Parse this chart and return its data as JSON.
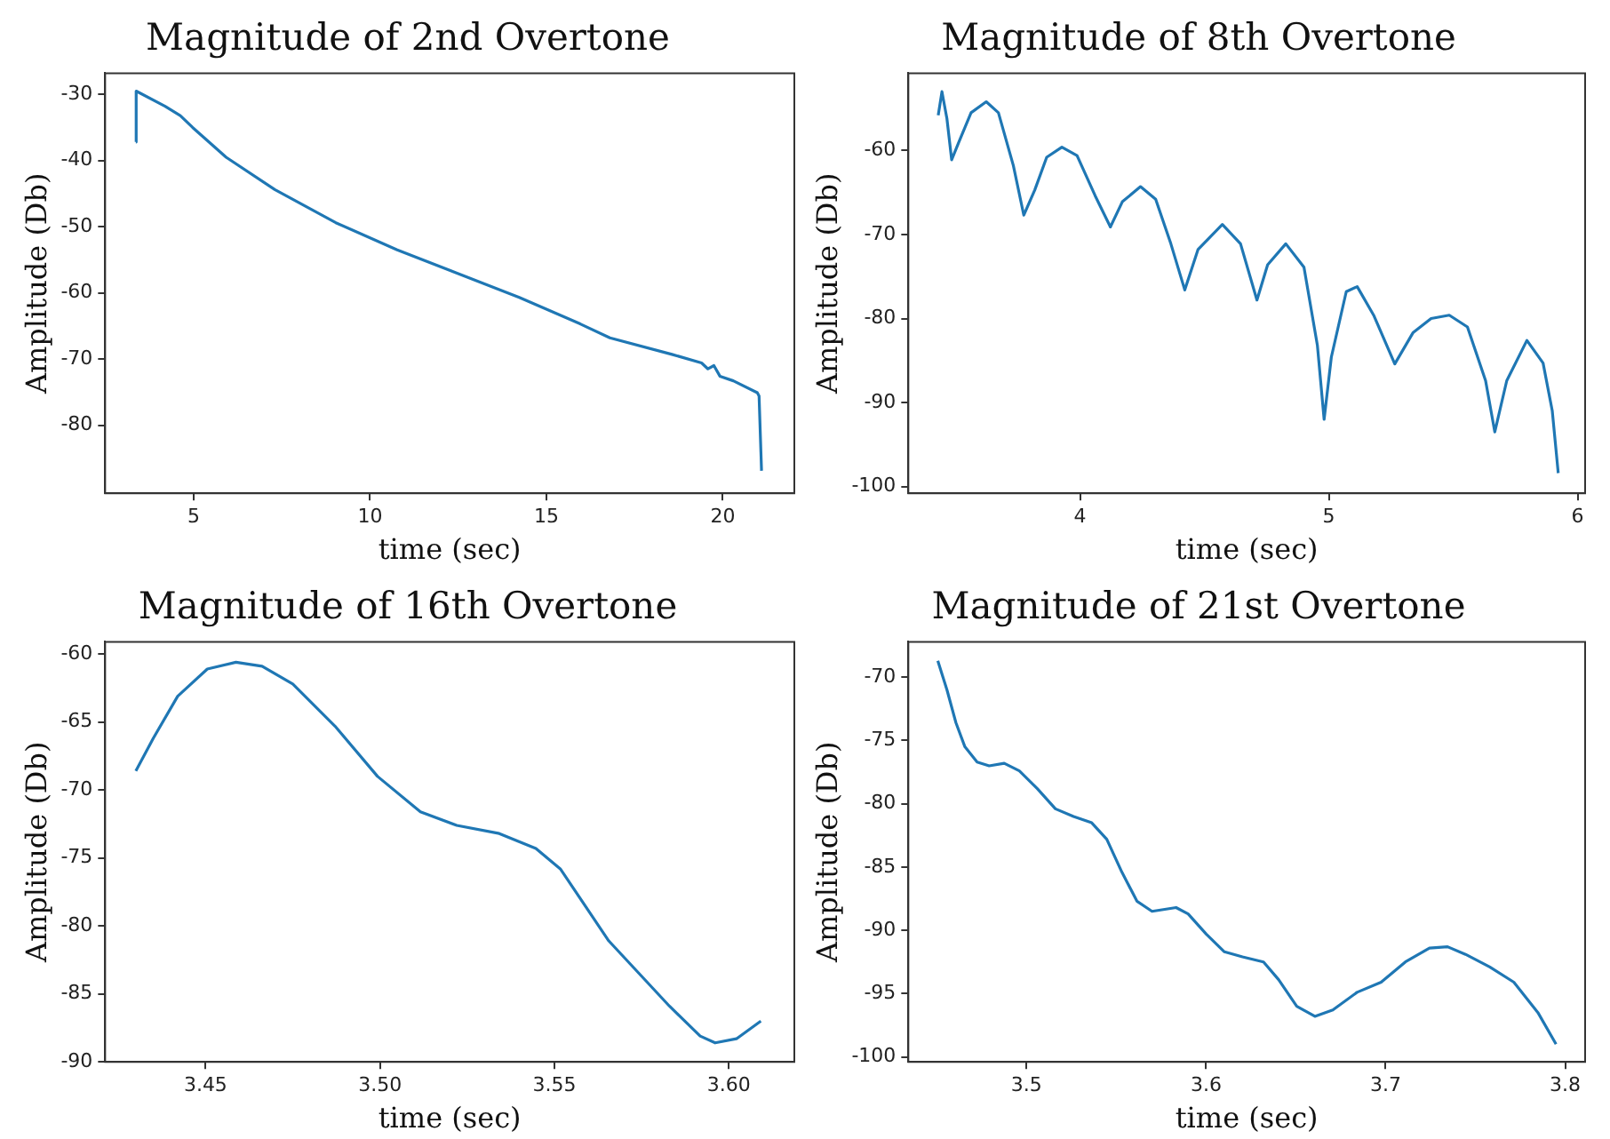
{
  "chart_data": [
    {
      "type": "line",
      "title": "Magnitude of 2nd Overtone",
      "xlabel": "time (sec)",
      "ylabel": "Amplitude (Db)",
      "color": "#1f77b4",
      "xlim": [
        2.49,
        22.03
      ],
      "ylim": [
        -90.3,
        -26.8
      ],
      "xticks": [
        5,
        10,
        15,
        20
      ],
      "yticks": [
        -30,
        -40,
        -50,
        -60,
        -70,
        -80
      ],
      "x": [
        3.36,
        3.37,
        4.19,
        4.62,
        4.97,
        5.92,
        7.3,
        9.03,
        10.77,
        12.5,
        14.23,
        15.96,
        16.8,
        18.56,
        19.4,
        19.58,
        19.75,
        19.92,
        20.3,
        20.98,
        21.03,
        21.1
      ],
      "values": [
        -37.2,
        -29.5,
        -31.8,
        -33.2,
        -35.0,
        -39.5,
        -44.4,
        -49.4,
        -53.5,
        -57.1,
        -60.7,
        -64.7,
        -66.8,
        -69.3,
        -70.6,
        -71.5,
        -71.0,
        -72.6,
        -73.3,
        -75.1,
        -75.6,
        -86.9
      ]
    },
    {
      "type": "line",
      "title": "Magnitude of 8th Overtone",
      "xlabel": "time (sec)",
      "ylabel": "Amplitude (Db)",
      "color": "#1f77b4",
      "xlim": [
        3.31,
        6.03
      ],
      "ylim": [
        -100.8,
        -50.8
      ],
      "xticks": [
        4,
        5,
        6
      ],
      "yticks": [
        -60,
        -70,
        -80,
        -90,
        -100
      ],
      "x": [
        3.43,
        3.445,
        3.465,
        3.484,
        3.513,
        3.562,
        3.623,
        3.672,
        3.732,
        3.774,
        3.818,
        3.866,
        3.927,
        3.988,
        4.061,
        4.122,
        4.17,
        4.243,
        4.304,
        4.365,
        4.421,
        4.474,
        4.572,
        4.645,
        4.711,
        4.754,
        4.827,
        4.9,
        4.954,
        4.981,
        5.01,
        5.07,
        5.114,
        5.18,
        5.265,
        5.338,
        5.411,
        5.484,
        5.557,
        5.63,
        5.667,
        5.715,
        5.796,
        5.861,
        5.898,
        5.922
      ],
      "values": [
        -55.8,
        -53.0,
        -56.2,
        -61.1,
        -59.0,
        -55.5,
        -54.2,
        -55.5,
        -61.8,
        -67.7,
        -64.7,
        -60.8,
        -59.6,
        -60.6,
        -65.4,
        -69.1,
        -66.1,
        -64.3,
        -65.8,
        -71.1,
        -76.6,
        -71.8,
        -68.8,
        -71.1,
        -77.8,
        -73.6,
        -71.1,
        -73.9,
        -83.2,
        -92.0,
        -84.6,
        -76.8,
        -76.2,
        -79.6,
        -85.4,
        -81.7,
        -80.0,
        -79.6,
        -81.0,
        -87.4,
        -93.5,
        -87.4,
        -82.6,
        -85.3,
        -91.0,
        -98.4
      ]
    },
    {
      "type": "line",
      "title": "Magnitude of 16th Overtone",
      "xlabel": "time (sec)",
      "ylabel": "Amplitude (Db)",
      "color": "#1f77b4",
      "xlim": [
        3.4212,
        3.6188
      ],
      "ylim": [
        -90,
        -59.1
      ],
      "xticks": [
        3.45,
        {
          "value": 3.5,
          "label": "3.50"
        },
        3.55,
        {
          "value": 3.6,
          "label": "3.60"
        }
      ],
      "yticks": [
        -60,
        -65,
        -70,
        -75,
        -80,
        -85,
        -90
      ],
      "x": [
        3.43,
        3.435,
        3.442,
        3.4505,
        3.4587,
        3.4662,
        3.475,
        3.4871,
        3.4993,
        3.5116,
        3.522,
        3.5342,
        3.5447,
        3.5517,
        3.5656,
        3.5743,
        3.583,
        3.5918,
        3.5961,
        3.6022,
        3.6092
      ],
      "values": [
        -68.6,
        -66.2,
        -63.1,
        -61.1,
        -60.6,
        -60.9,
        -62.2,
        -65.3,
        -69.0,
        -71.6,
        -72.6,
        -73.2,
        -74.3,
        -75.8,
        -81.1,
        -83.5,
        -85.9,
        -88.1,
        -88.6,
        -88.3,
        -87.0
      ]
    },
    {
      "type": "line",
      "title": "Magnitude of 21st Overtone",
      "xlabel": "time (sec)",
      "ylabel": "Amplitude (Db)",
      "color": "#1f77b4",
      "xlim": [
        3.4342,
        3.8111
      ],
      "ylim": [
        -100.4,
        -67.2
      ],
      "xticks": [
        3.5,
        3.6,
        3.7,
        3.8
      ],
      "yticks": [
        -70,
        -75,
        -80,
        -85,
        -90,
        -95,
        -100
      ],
      "x": [
        3.4506,
        3.4557,
        3.4607,
        3.4657,
        3.4725,
        3.4792,
        3.4876,
        3.496,
        3.506,
        3.5161,
        3.5262,
        3.5363,
        3.5447,
        3.5531,
        3.5615,
        3.5699,
        3.5833,
        3.59,
        3.6001,
        3.6102,
        3.6203,
        3.632,
        3.6404,
        3.6505,
        3.6606,
        3.6706,
        3.6841,
        3.6975,
        3.711,
        3.7244,
        3.7345,
        3.7445,
        3.758,
        3.7714,
        3.7848,
        3.7949
      ],
      "values": [
        -68.7,
        -71.0,
        -73.6,
        -75.5,
        -76.7,
        -77.0,
        -76.8,
        -77.4,
        -78.8,
        -80.4,
        -81.0,
        -81.5,
        -82.8,
        -85.4,
        -87.7,
        -88.5,
        -88.2,
        -88.7,
        -90.3,
        -91.7,
        -92.1,
        -92.5,
        -93.9,
        -96.0,
        -96.8,
        -96.3,
        -94.9,
        -94.1,
        -92.5,
        -91.4,
        -91.3,
        -91.9,
        -92.9,
        -94.1,
        -96.5,
        -99.0
      ]
    }
  ]
}
